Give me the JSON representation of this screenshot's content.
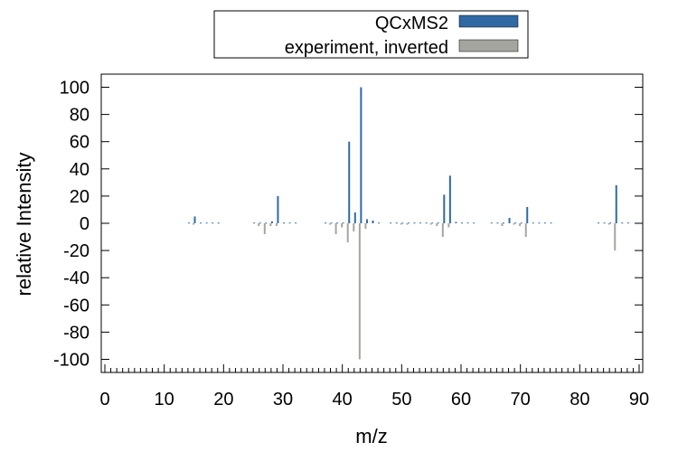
{
  "chart_data": {
    "type": "bar",
    "xlabel": "m/z",
    "ylabel": "relative Intensity",
    "xlim": [
      0,
      90
    ],
    "ylim": [
      -110,
      110
    ],
    "xticks": [
      0,
      10,
      20,
      30,
      40,
      50,
      60,
      70,
      80,
      90
    ],
    "yticks": [
      -100,
      -80,
      -60,
      -40,
      -20,
      0,
      20,
      40,
      60,
      80,
      100
    ],
    "legend_position": "top-center",
    "grid": false,
    "series": [
      {
        "name": "QCxMS2",
        "color": "#2f6aa5",
        "x": [
          14,
          15,
          16,
          17,
          18,
          19,
          25,
          26,
          27,
          28,
          29,
          30,
          31,
          32,
          37,
          38,
          39,
          40,
          41,
          42,
          43,
          44,
          45,
          46,
          48,
          49,
          50,
          51,
          52,
          53,
          54,
          55,
          56,
          57,
          58,
          59,
          60,
          61,
          62,
          65,
          66,
          67,
          68,
          69,
          70,
          71,
          72,
          73,
          74,
          75,
          83,
          84,
          85,
          86,
          87,
          88
        ],
        "y": [
          0.5,
          5,
          0.5,
          0.5,
          0.5,
          0.5,
          0.5,
          0.5,
          0.5,
          1.5,
          20,
          0.5,
          0.5,
          0.5,
          0.5,
          0.5,
          0.5,
          0.5,
          60,
          8,
          100,
          3,
          2,
          0.5,
          0.5,
          0.5,
          0.5,
          0.5,
          0.5,
          0.5,
          0.5,
          0.5,
          0.5,
          21,
          35,
          1,
          0.5,
          0.5,
          0.5,
          0.5,
          0.5,
          0.5,
          4,
          0.5,
          0.5,
          12,
          0.5,
          0.5,
          0.5,
          0.5,
          0.5,
          0.5,
          0.5,
          28,
          0.5,
          0.5
        ]
      },
      {
        "name": "experiment, inverted",
        "color": "#a5a5a0",
        "x": [
          15,
          26,
          27,
          28,
          29,
          38,
          39,
          40,
          41,
          42,
          43,
          44,
          50,
          51,
          55,
          56,
          57,
          58,
          67,
          69,
          70,
          71,
          85,
          86
        ],
        "y": [
          -1,
          -2,
          -8,
          -2,
          -2,
          -1,
          -8,
          -3,
          -14,
          -6,
          -100,
          -4,
          -1,
          -1,
          -1,
          -2,
          -10,
          -3,
          -2,
          -1,
          -2,
          -10,
          -1,
          -20
        ]
      }
    ]
  }
}
